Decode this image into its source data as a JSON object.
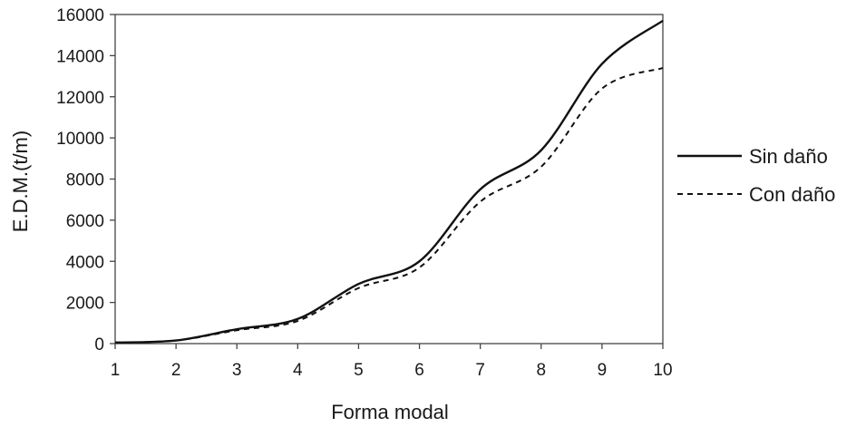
{
  "chart_data": {
    "type": "line",
    "title": "",
    "xlabel": "Forma modal",
    "ylabel": "E.D.M.(t/m)",
    "xlim": [
      1,
      10
    ],
    "ylim": [
      0,
      16000
    ],
    "x_ticks": [
      "1",
      "2",
      "3",
      "4",
      "5",
      "6",
      "7",
      "8",
      "9",
      "10"
    ],
    "y_ticks": [
      "0",
      "2000",
      "4000",
      "6000",
      "8000",
      "10000",
      "12000",
      "14000",
      "16000"
    ],
    "grid": false,
    "legend_position": "right",
    "x": [
      1,
      2,
      3,
      4,
      5,
      6,
      7,
      8,
      9,
      10
    ],
    "series": [
      {
        "name": "Sin daño",
        "style": "solid",
        "color": "#111111",
        "values": [
          50,
          150,
          700,
          1200,
          2900,
          4000,
          7500,
          9400,
          13600,
          15700
        ]
      },
      {
        "name": "Con daño",
        "style": "dashed",
        "color": "#111111",
        "values": [
          50,
          150,
          650,
          1100,
          2700,
          3700,
          6900,
          8600,
          12400,
          13400
        ]
      }
    ]
  }
}
